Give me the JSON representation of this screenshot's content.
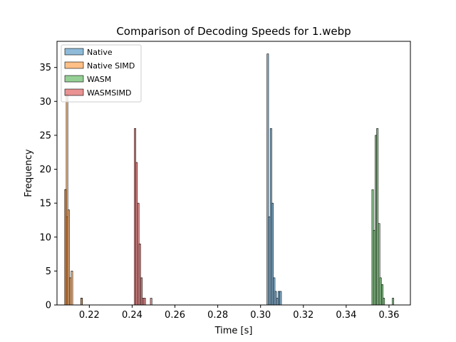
{
  "chart_data": {
    "type": "bar",
    "subtype": "histogram",
    "title": "Comparison of Decoding Speeds for 1.webp",
    "xlabel": "Time [s]",
    "ylabel": "Frequency",
    "xlim": [
      0.2049,
      0.37
    ],
    "ylim": [
      0,
      38.85
    ],
    "xticks": [
      0.22,
      0.24,
      0.26,
      0.28,
      0.3,
      0.32,
      0.34,
      0.36
    ],
    "xtick_labels": [
      "0.22",
      "0.24",
      "0.26",
      "0.28",
      "0.30",
      "0.32",
      "0.34",
      "0.36"
    ],
    "yticks": [
      0,
      5,
      10,
      15,
      20,
      25,
      30,
      35
    ],
    "ytick_labels": [
      "0",
      "5",
      "10",
      "15",
      "20",
      "25",
      "30",
      "35"
    ],
    "grid": false,
    "legend_position": "top-left",
    "bin_width": 0.00075,
    "series": [
      {
        "name": "Native",
        "color": "#1f77b4",
        "bins": [
          [
            0.303,
            37
          ],
          [
            0.3037,
            13
          ],
          [
            0.3045,
            26
          ],
          [
            0.3052,
            15
          ],
          [
            0.306,
            4
          ],
          [
            0.3067,
            2
          ],
          [
            0.3075,
            1
          ],
          [
            0.3082,
            2
          ],
          [
            0.309,
            2
          ]
        ]
      },
      {
        "name": "Native SIMD",
        "color": "#ff7f0e",
        "bins": [
          [
            0.2085,
            17
          ],
          [
            0.2092,
            13
          ],
          [
            0.21,
            14
          ],
          [
            0.2107,
            4
          ],
          [
            0.2115,
            5
          ],
          [
            0.216,
            1
          ]
        ]
      },
      {
        "name": "WASM",
        "color": "#2ca02c",
        "bins": [
          [
            0.352,
            17
          ],
          [
            0.3527,
            11
          ],
          [
            0.3535,
            25
          ],
          [
            0.3542,
            26
          ],
          [
            0.355,
            12
          ],
          [
            0.3557,
            4
          ],
          [
            0.3565,
            3
          ],
          [
            0.3572,
            1
          ],
          [
            0.3615,
            1
          ]
        ]
      },
      {
        "name": "WASMSIMD",
        "color": "#d62728",
        "bins": [
          [
            0.241,
            26
          ],
          [
            0.2417,
            21
          ],
          [
            0.2425,
            15
          ],
          [
            0.2432,
            9
          ],
          [
            0.244,
            4
          ],
          [
            0.2447,
            1
          ],
          [
            0.2455,
            1
          ],
          [
            0.2485,
            1
          ]
        ]
      }
    ],
    "overlay_bins": [
      [
        0.2085,
        17
      ],
      [
        0.2092,
        31
      ],
      [
        0.216,
        1
      ]
    ]
  }
}
